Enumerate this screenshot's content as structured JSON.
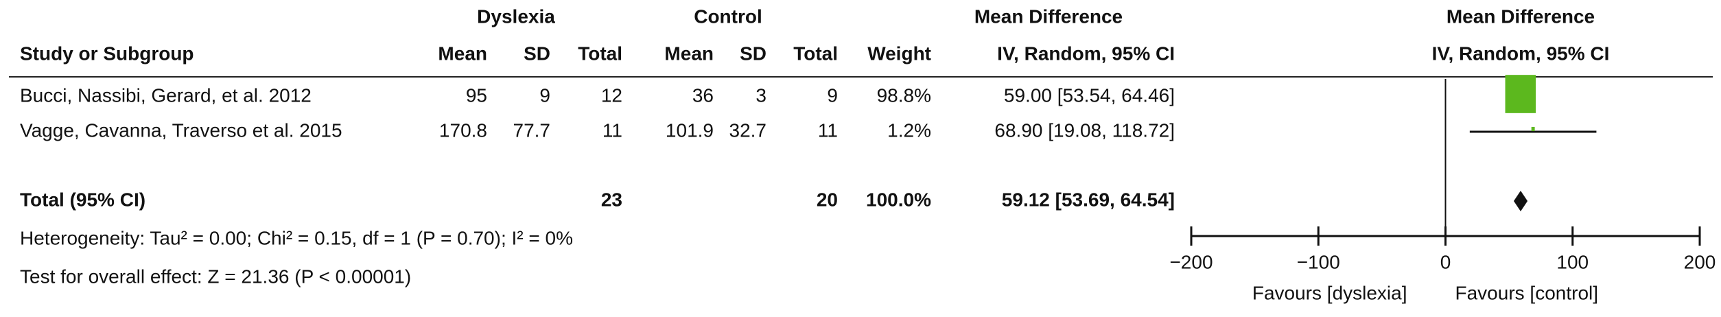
{
  "chart_data": {
    "type": "forest",
    "group_headers": {
      "dyslexia": "Dyslexia",
      "control": "Control",
      "table_effect": "Mean Difference",
      "plot_effect": "Mean Difference"
    },
    "columns": [
      "Study or Subgroup",
      "Mean",
      "SD",
      "Total",
      "Mean",
      "SD",
      "Total",
      "Weight",
      "IV, Random, 95% CI",
      "IV, Random, 95% CI"
    ],
    "studies": [
      {
        "name": "Bucci, Nassibi, Gerard, et al. 2012",
        "dys_mean": 95,
        "dys_sd": 9,
        "dys_total": 12,
        "ctl_mean": 36,
        "ctl_sd": 3,
        "ctl_total": 9,
        "weight": {
          "value": 98.8,
          "label": "98.8%"
        },
        "estimate": 59.0,
        "ci": [
          53.54,
          64.46
        ],
        "ci_label": "59.00 [53.54, 64.46]"
      },
      {
        "name": "Vagge, Cavanna, Traverso et al. 2015",
        "dys_mean": 170.8,
        "dys_sd": 77.7,
        "dys_total": 11,
        "ctl_mean": 101.9,
        "ctl_sd": 32.7,
        "ctl_total": 11,
        "weight": {
          "value": 1.2,
          "label": "1.2%"
        },
        "estimate": 68.9,
        "ci": [
          19.08,
          118.72
        ],
        "ci_label": "68.90 [19.08, 118.72]"
      }
    ],
    "total": {
      "name": "Total (95% CI)",
      "dys_total": 23,
      "ctl_total": 20,
      "weight": {
        "value": 100.0,
        "label": "100.0%"
      },
      "estimate": 59.12,
      "ci": [
        53.69,
        64.54
      ],
      "ci_label": "59.12 [53.69, 64.54]"
    },
    "heterogeneity": "Heterogeneity: Tau² = 0.00; Chi² = 0.15, df = 1 (P = 0.70); I² = 0%",
    "overall_effect": "Test for overall effect: Z = 21.36 (P < 0.00001)",
    "xlim": [
      -200,
      200
    ],
    "xticks": [
      {
        "value": -200,
        "label": "−200"
      },
      {
        "value": -100,
        "label": "−100"
      },
      0,
      100,
      200
    ],
    "favours": [
      "Favours [dyslexia]",
      "Favours [control]"
    ],
    "color": "#5cb81e"
  }
}
